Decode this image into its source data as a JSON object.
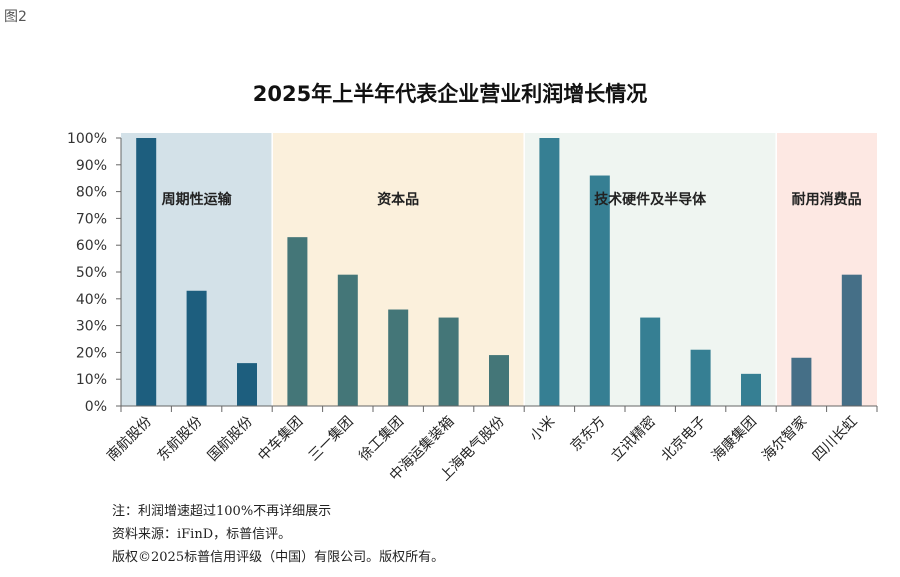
{
  "figure_label": "图2",
  "chart_data": {
    "type": "bar",
    "title": "2025年上半年代表企业营业利润增长情况",
    "xlabel": "",
    "ylabel": "",
    "ylim": [
      0,
      100
    ],
    "yticks": [
      "0%",
      "10%",
      "20%",
      "30%",
      "40%",
      "50%",
      "60%",
      "70%",
      "80%",
      "90%",
      "100%"
    ],
    "grid": false,
    "categories": [
      "南航股份",
      "东航股份",
      "国航股份",
      "中车集团",
      "三一集团",
      "徐工集团",
      "中海运集装箱",
      "上海电气股份",
      "小米",
      "京东方",
      "立讯精密",
      "北京电子",
      "海康集团",
      "海尔智家",
      "四川长虹"
    ],
    "values": [
      100,
      43,
      16,
      63,
      49,
      36,
      33,
      19,
      100,
      86,
      33,
      21,
      12,
      18,
      49
    ],
    "groups": [
      {
        "name": "周期性运输",
        "start": 0,
        "end": 2,
        "bg": "#d3e1e8",
        "bar": "#1d5e7e"
      },
      {
        "name": "资本品",
        "start": 3,
        "end": 7,
        "bg": "#fbf0dc",
        "bar": "#447678"
      },
      {
        "name": "技术硬件及半导体",
        "start": 8,
        "end": 12,
        "bg": "#eff5f1",
        "bar": "#367f93"
      },
      {
        "name": "耐用消费品",
        "start": 13,
        "end": 14,
        "bg": "#fde8e3",
        "bar": "#456f87"
      }
    ]
  },
  "notes": [
    "注：利润增速超过100%不再详细展示",
    "资料来源：iFinD，标普信评。",
    "版权©2025标普信用评级（中国）有限公司。版权所有。"
  ]
}
